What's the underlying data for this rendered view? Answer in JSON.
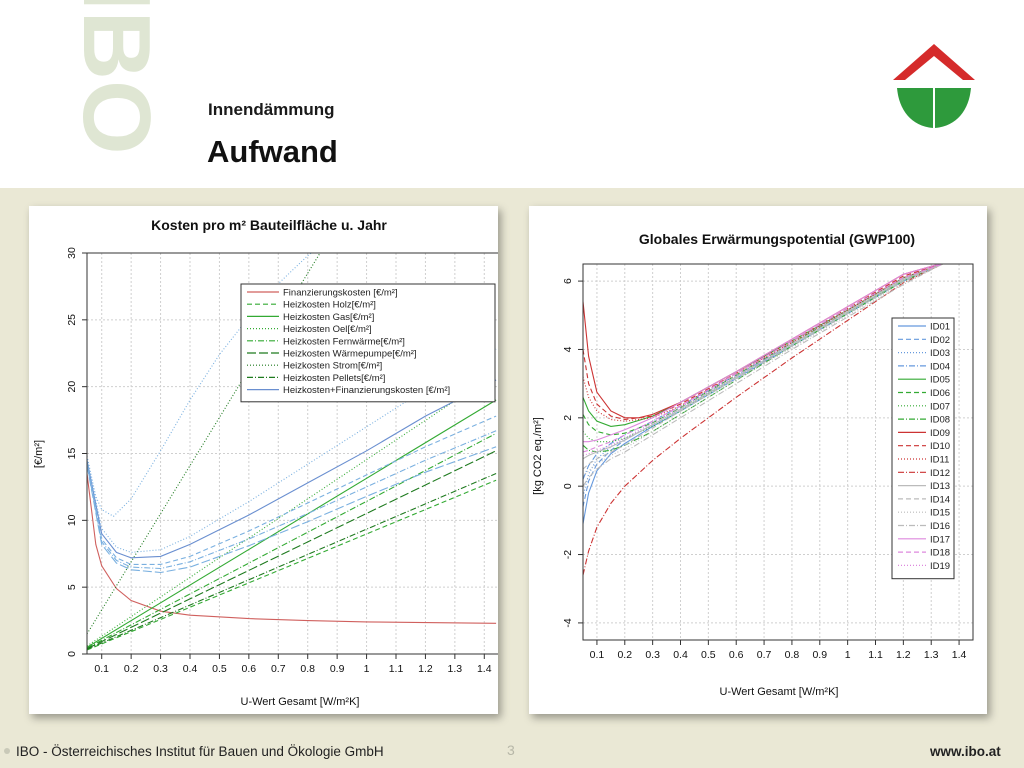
{
  "header": {
    "subtitle": "Innendämmung",
    "title": "Aufwand",
    "watermark": "IBO"
  },
  "footer": {
    "left": "IBO - Österreichisches Institut für Bauen und Ökologie GmbH",
    "page": "3",
    "right": "www.ibo.at"
  },
  "colors": {
    "background": "#eae8d5",
    "logo_red": "#d52b2b",
    "logo_green": "#2e9a3c"
  },
  "chart_data": [
    {
      "type": "line",
      "title": "Kosten pro m² Bauteilfläche u. Jahr",
      "xlabel": "U-Wert Gesamt [W/m²K]",
      "ylabel": "[€/m²]",
      "xlim": [
        0.05,
        1.45
      ],
      "ylim": [
        0,
        30
      ],
      "xticks": [
        "0.1",
        "0.2",
        "0.3",
        "0.4",
        "0.5",
        "0.6",
        "0.7",
        "0.8",
        "0.9",
        "1",
        "1.1",
        "1.2",
        "1.3",
        "1.4"
      ],
      "yticks": [
        "0",
        "5",
        "10",
        "15",
        "20",
        "25",
        "30"
      ],
      "grid": true,
      "legend_position": "top-right",
      "series": [
        {
          "name": "Finanzierungskosten [€/m²]",
          "color": "#d0605e",
          "dash": "solid",
          "x": [
            0.05,
            0.08,
            0.1,
            0.15,
            0.2,
            0.3,
            0.4,
            0.6,
            0.8,
            1.0,
            1.2,
            1.44
          ],
          "y": [
            13.5,
            8.2,
            6.6,
            4.9,
            4.0,
            3.2,
            2.9,
            2.65,
            2.5,
            2.4,
            2.35,
            2.3
          ]
        },
        {
          "name": "Heizkosten Holz[€/m²]",
          "color": "#33aa33",
          "dash": "5,3",
          "x": [
            0.05,
            1.44
          ],
          "y": [
            0.3,
            13.0
          ]
        },
        {
          "name": "Heizkosten Gas[€/m²]",
          "color": "#33aa33",
          "dash": "solid",
          "x": [
            0.05,
            1.44
          ],
          "y": [
            0.5,
            19.0
          ]
        },
        {
          "name": "Heizkosten Oel[€/m²]",
          "color": "#33aa33",
          "dash": "1,2",
          "x": [
            0.05,
            1.44
          ],
          "y": [
            0.6,
            21.0
          ]
        },
        {
          "name": "Heizkosten Fernwärme[€/m²]",
          "color": "#33aa33",
          "dash": "6,2,1,2",
          "x": [
            0.05,
            1.44
          ],
          "y": [
            0.45,
            16.5
          ]
        },
        {
          "name": "Heizkosten Wärmepumpe[€/m²]",
          "color": "#1e7a1e",
          "dash": "9,3",
          "x": [
            0.05,
            1.44
          ],
          "y": [
            0.4,
            15.2
          ]
        },
        {
          "name": "Heizkosten Strom[€/m²]",
          "color": "#1e7a1e",
          "dash": "1,2",
          "x": [
            0.05,
            0.87
          ],
          "y": [
            1.5,
            31.0
          ]
        },
        {
          "name": "Heizkosten Pellets[€/m²]",
          "color": "#1e7a1e",
          "dash": "6,2,1,2",
          "x": [
            0.05,
            1.44
          ],
          "y": [
            0.35,
            13.5
          ]
        },
        {
          "name": "Heizkosten+Finanzierungskosten [€/m²]",
          "color": "#6a8fd0",
          "dash": "solid",
          "x": [
            0.05,
            0.1,
            0.15,
            0.2,
            0.3,
            0.4,
            0.6,
            0.8,
            1.0,
            1.2,
            1.44
          ],
          "y": [
            14.5,
            9.0,
            7.6,
            7.2,
            7.3,
            8.2,
            10.4,
            12.8,
            15.2,
            17.8,
            20.5
          ]
        },
        {
          "name": "",
          "color": "#7ab0e0",
          "dash": "1,2",
          "x": [
            0.05,
            0.08,
            0.1,
            0.14,
            0.2,
            0.3,
            0.4,
            0.5,
            0.6,
            0.7,
            0.8,
            0.87
          ],
          "y": [
            14.8,
            11.8,
            10.8,
            10.3,
            11.6,
            15.2,
            19.0,
            22.4,
            25.2,
            27.7,
            29.8,
            31.0
          ]
        },
        {
          "name": "",
          "color": "#7ab0e0",
          "dash": "1,2",
          "x": [
            0.05,
            0.1,
            0.15,
            0.2,
            0.3,
            0.4,
            0.6,
            0.8,
            1.0,
            1.2,
            1.44
          ],
          "y": [
            14.6,
            9.4,
            8.0,
            7.6,
            7.8,
            8.8,
            11.4,
            14.2,
            17.0,
            19.8,
            22.8
          ]
        },
        {
          "name": "",
          "color": "#7ab0e0",
          "dash": "5,3",
          "x": [
            0.05,
            0.1,
            0.15,
            0.2,
            0.3,
            0.4,
            0.6,
            0.8,
            1.0,
            1.2,
            1.44
          ],
          "y": [
            14.3,
            8.6,
            7.2,
            6.7,
            6.7,
            7.3,
            9.2,
            11.3,
            13.4,
            15.5,
            17.8
          ]
        },
        {
          "name": "",
          "color": "#7ab0e0",
          "dash": "6,2,1,2",
          "x": [
            0.05,
            0.1,
            0.15,
            0.2,
            0.3,
            0.4,
            0.6,
            0.8,
            1.0,
            1.2,
            1.44
          ],
          "y": [
            14.2,
            8.4,
            7.0,
            6.5,
            6.4,
            6.9,
            8.6,
            10.5,
            12.5,
            14.5,
            16.7
          ]
        },
        {
          "name": "",
          "color": "#7ab0e0",
          "dash": "9,3",
          "x": [
            0.05,
            0.1,
            0.15,
            0.2,
            0.3,
            0.4,
            0.6,
            0.8,
            1.0,
            1.2,
            1.44
          ],
          "y": [
            14.1,
            8.2,
            6.8,
            6.3,
            6.1,
            6.5,
            8.1,
            9.9,
            11.8,
            13.6,
            15.5
          ]
        }
      ]
    },
    {
      "type": "line",
      "title": "Globales Erwärmungspotential (GWP100)",
      "xlabel": "U-Wert Gesamt [W/m²K]",
      "ylabel": "[kg CO2 eq./m²]",
      "xlim": [
        0.05,
        1.45
      ],
      "ylim": [
        -4.5,
        6.5
      ],
      "xticks": [
        "0.1",
        "0.2",
        "0.3",
        "0.4",
        "0.5",
        "0.6",
        "0.7",
        "0.8",
        "0.9",
        "1",
        "1.1",
        "1.2",
        "1.3",
        "1.4"
      ],
      "yticks": [
        "-4",
        "-2",
        "0",
        "2",
        "4",
        "6"
      ],
      "grid": true,
      "legend_position": "right",
      "legend": [
        "ID01",
        "ID02",
        "ID03",
        "ID04",
        "ID05",
        "ID06",
        "ID07",
        "ID08",
        "ID09",
        "ID10",
        "ID11",
        "ID12",
        "ID13",
        "ID14",
        "ID15",
        "ID16",
        "ID17",
        "ID18",
        "ID19"
      ],
      "series": [
        {
          "name": "ID01",
          "color": "#6699dd",
          "dash": "solid",
          "x": [
            0.05,
            0.07,
            0.1,
            0.15,
            0.2,
            0.3,
            0.4,
            0.6,
            0.8,
            1.0,
            1.2,
            1.34
          ],
          "y": [
            -1.1,
            -0.2,
            0.45,
            0.95,
            1.25,
            1.75,
            2.2,
            3.15,
            4.1,
            5.05,
            6.0,
            6.5
          ]
        },
        {
          "name": "ID02",
          "color": "#6699dd",
          "dash": "5,3",
          "x": [
            0.05,
            0.07,
            0.1,
            0.15,
            0.2,
            0.3,
            0.4,
            0.6,
            0.8,
            1.0,
            1.2,
            1.34
          ],
          "y": [
            -0.6,
            0.15,
            0.65,
            1.05,
            1.35,
            1.8,
            2.25,
            3.2,
            4.1,
            5.05,
            6.0,
            6.5
          ]
        },
        {
          "name": "ID03",
          "color": "#6699dd",
          "dash": "1,2",
          "x": [
            0.05,
            0.07,
            0.1,
            0.15,
            0.2,
            0.3,
            0.4,
            0.6,
            0.8,
            1.0,
            1.2,
            1.34
          ],
          "y": [
            -0.3,
            0.35,
            0.8,
            1.15,
            1.4,
            1.85,
            2.3,
            3.2,
            4.15,
            5.1,
            6.0,
            6.5
          ]
        },
        {
          "name": "ID04",
          "color": "#6699dd",
          "dash": "6,2,1,2",
          "x": [
            0.05,
            0.07,
            0.1,
            0.15,
            0.2,
            0.3,
            0.4,
            0.6,
            0.8,
            1.0,
            1.2,
            1.34
          ],
          "y": [
            0.2,
            0.6,
            0.95,
            1.25,
            1.5,
            1.9,
            2.35,
            3.25,
            4.15,
            5.1,
            6.05,
            6.5
          ]
        },
        {
          "name": "ID05",
          "color": "#33aa33",
          "dash": "solid",
          "x": [
            0.05,
            0.07,
            0.1,
            0.15,
            0.2,
            0.3,
            0.4,
            0.6,
            0.8,
            1.0,
            1.2,
            1.34
          ],
          "y": [
            2.6,
            2.2,
            1.9,
            1.75,
            1.8,
            2.05,
            2.45,
            3.35,
            4.25,
            5.15,
            6.1,
            6.5
          ]
        },
        {
          "name": "ID06",
          "color": "#33aa33",
          "dash": "5,3",
          "x": [
            0.05,
            0.07,
            0.1,
            0.15,
            0.2,
            0.3,
            0.4,
            0.6,
            0.8,
            1.0,
            1.2,
            1.34
          ],
          "y": [
            2.1,
            1.8,
            1.6,
            1.5,
            1.55,
            1.85,
            2.3,
            3.25,
            4.2,
            5.1,
            6.05,
            6.5
          ]
        },
        {
          "name": "ID07",
          "color": "#33aa33",
          "dash": "1,2",
          "x": [
            0.05,
            0.07,
            0.1,
            0.15,
            0.2,
            0.3,
            0.4,
            0.6,
            0.8,
            1.0,
            1.2,
            1.34
          ],
          "y": [
            1.6,
            1.4,
            1.3,
            1.3,
            1.4,
            1.75,
            2.2,
            3.2,
            4.15,
            5.1,
            6.0,
            6.5
          ]
        },
        {
          "name": "ID08",
          "color": "#33aa33",
          "dash": "6,2,1,2",
          "x": [
            0.05,
            0.07,
            0.1,
            0.15,
            0.2,
            0.3,
            0.4,
            0.6,
            0.8,
            1.0,
            1.2,
            1.34
          ],
          "y": [
            1.2,
            1.05,
            1.0,
            1.05,
            1.2,
            1.6,
            2.1,
            3.1,
            4.1,
            5.05,
            6.0,
            6.5
          ]
        },
        {
          "name": "ID09",
          "color": "#cc3333",
          "dash": "solid",
          "x": [
            0.05,
            0.07,
            0.1,
            0.15,
            0.2,
            0.25,
            0.3,
            0.4,
            0.6,
            0.8,
            1.0,
            1.2,
            1.33
          ],
          "y": [
            5.4,
            3.8,
            2.75,
            2.2,
            2.0,
            2.0,
            2.1,
            2.45,
            3.35,
            4.3,
            5.25,
            6.2,
            6.5
          ]
        },
        {
          "name": "ID10",
          "color": "#cc3333",
          "dash": "5,3",
          "x": [
            0.05,
            0.07,
            0.1,
            0.15,
            0.2,
            0.3,
            0.4,
            0.6,
            0.8,
            1.0,
            1.2,
            1.34
          ],
          "y": [
            4.0,
            3.0,
            2.4,
            2.05,
            1.95,
            2.05,
            2.4,
            3.3,
            4.25,
            5.2,
            6.15,
            6.5
          ]
        },
        {
          "name": "ID11",
          "color": "#cc3333",
          "dash": "1,2",
          "x": [
            0.05,
            0.07,
            0.1,
            0.15,
            0.2,
            0.3,
            0.4,
            0.6,
            0.8,
            1.0,
            1.2,
            1.34
          ],
          "y": [
            3.2,
            2.6,
            2.2,
            1.95,
            1.9,
            2.0,
            2.35,
            3.3,
            4.2,
            5.15,
            6.1,
            6.5
          ]
        },
        {
          "name": "ID12",
          "color": "#cc3333",
          "dash": "6,2,1,2",
          "x": [
            0.05,
            0.07,
            0.1,
            0.15,
            0.2,
            0.3,
            0.4,
            0.6,
            0.8,
            1.0,
            1.2,
            1.34
          ],
          "y": [
            -2.6,
            -1.9,
            -1.2,
            -0.5,
            0.0,
            0.75,
            1.4,
            2.6,
            3.75,
            4.85,
            5.95,
            6.5
          ]
        },
        {
          "name": "ID13",
          "color": "#bbbbbb",
          "dash": "solid",
          "x": [
            0.05,
            0.07,
            0.1,
            0.15,
            0.2,
            0.3,
            0.4,
            0.6,
            0.8,
            1.0,
            1.2,
            1.34
          ],
          "y": [
            0.8,
            0.9,
            1.0,
            1.15,
            1.35,
            1.8,
            2.25,
            3.2,
            4.15,
            5.1,
            6.05,
            6.5
          ]
        },
        {
          "name": "ID14",
          "color": "#bbbbbb",
          "dash": "5,3",
          "x": [
            0.05,
            0.07,
            0.1,
            0.15,
            0.2,
            0.3,
            0.4,
            0.6,
            0.8,
            1.0,
            1.2,
            1.34
          ],
          "y": [
            0.5,
            0.65,
            0.8,
            1.0,
            1.2,
            1.7,
            2.2,
            3.15,
            4.1,
            5.05,
            6.0,
            6.5
          ]
        },
        {
          "name": "ID15",
          "color": "#bbbbbb",
          "dash": "1,2",
          "x": [
            0.05,
            0.07,
            0.1,
            0.15,
            0.2,
            0.3,
            0.4,
            0.6,
            0.8,
            1.0,
            1.2,
            1.34
          ],
          "y": [
            0.3,
            0.45,
            0.65,
            0.9,
            1.1,
            1.6,
            2.1,
            3.1,
            4.05,
            5.0,
            5.95,
            6.5
          ]
        },
        {
          "name": "ID16",
          "color": "#bbbbbb",
          "dash": "6,2,1,2",
          "x": [
            0.05,
            0.07,
            0.1,
            0.15,
            0.2,
            0.3,
            0.4,
            0.6,
            0.8,
            1.0,
            1.2,
            1.34
          ],
          "y": [
            0.0,
            0.25,
            0.5,
            0.8,
            1.0,
            1.5,
            2.0,
            3.0,
            4.0,
            4.95,
            5.9,
            6.5
          ]
        },
        {
          "name": "ID17",
          "color": "#dd88dd",
          "dash": "solid",
          "x": [
            0.05,
            0.07,
            0.1,
            0.15,
            0.2,
            0.3,
            0.4,
            0.6,
            0.8,
            1.0,
            1.2,
            1.33
          ],
          "y": [
            1.3,
            1.3,
            1.35,
            1.5,
            1.65,
            2.0,
            2.45,
            3.35,
            4.3,
            5.25,
            6.2,
            6.5
          ]
        },
        {
          "name": "ID18",
          "color": "#dd88dd",
          "dash": "5,3",
          "x": [
            0.05,
            0.07,
            0.1,
            0.15,
            0.2,
            0.3,
            0.4,
            0.6,
            0.8,
            1.0,
            1.2,
            1.34
          ],
          "y": [
            1.0,
            1.05,
            1.15,
            1.3,
            1.5,
            1.9,
            2.35,
            3.3,
            4.25,
            5.2,
            6.1,
            6.5
          ]
        },
        {
          "name": "ID19",
          "color": "#dd88dd",
          "dash": "1,2",
          "x": [
            0.05,
            0.07,
            0.1,
            0.15,
            0.2,
            0.3,
            0.4,
            0.6,
            0.8,
            1.0,
            1.2,
            1.34
          ],
          "y": [
            0.9,
            0.95,
            1.05,
            1.2,
            1.4,
            1.85,
            2.3,
            3.25,
            4.2,
            5.15,
            6.1,
            6.5
          ]
        }
      ]
    }
  ]
}
